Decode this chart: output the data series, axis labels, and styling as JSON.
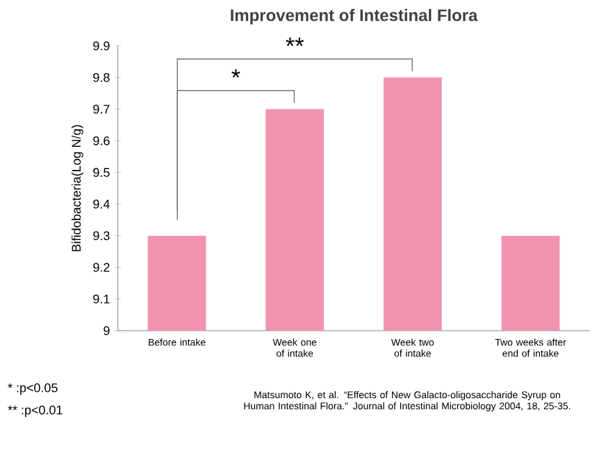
{
  "chart_data": {
    "type": "bar",
    "title": "Improvement of Intestinal Flora",
    "ylabel": "Bifidobacteria(Log N/g)",
    "categories": [
      "Before intake",
      "Week one of intake",
      "Week two of intake",
      "Two weeks after end of intake"
    ],
    "values": [
      9.3,
      9.7,
      9.8,
      9.3
    ],
    "color": "#f193ae",
    "ylim": [
      9,
      9.9
    ],
    "yticks": [
      9,
      9.1,
      9.2,
      9.3,
      9.4,
      9.5,
      9.6,
      9.7,
      9.8,
      9.9
    ],
    "annotations": [
      "*",
      "**",
      "* :p<0.05",
      "** :p<0.01",
      "Matsumoto K, et al. “Effects of New Galacto-oligosaccharide Syrup on Human Intestinal Flora.” Journal of Intestinal Microbiology 2004, 18, 25-35."
    ]
  }
}
